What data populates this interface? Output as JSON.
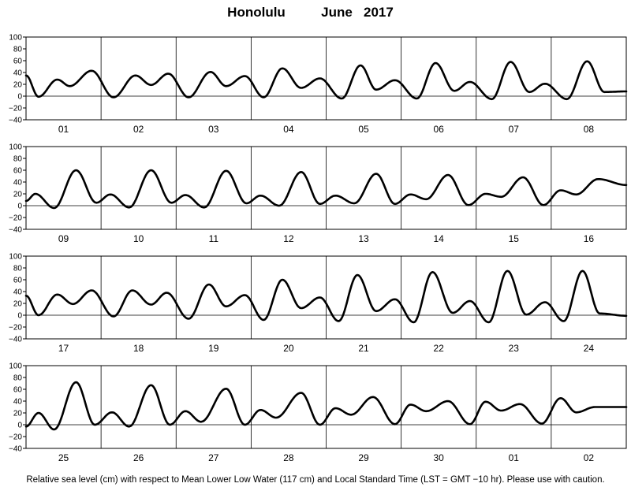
{
  "chart_data": {
    "type": "line",
    "title_location": "Honolulu",
    "title_period": "June   2017",
    "caption": "Relative sea level (cm) with respect to Mean Lower Low Water (117 cm) and Local Standard Time (LST = GMT −10 hr). Please use with caution.",
    "ylim": [
      -40,
      100
    ],
    "y_ticks": [
      100,
      80,
      60,
      40,
      20,
      0,
      -20,
      -40
    ],
    "y_tick_labels": [
      "100",
      "80",
      "60",
      "40",
      "20",
      "0",
      "−20",
      "−40"
    ],
    "hours_per_day": 24,
    "x_unit": "hour",
    "colors": {
      "line": "#000000",
      "grid": "#000000",
      "background": "#ffffff"
    },
    "panels": [
      {
        "days": [
          "01",
          "02",
          "03",
          "04",
          "05",
          "06",
          "07",
          "08"
        ],
        "extrema": [
          [
            0,
            35
          ],
          [
            4,
            -1
          ],
          [
            10,
            28
          ],
          [
            14,
            17
          ],
          [
            21,
            43
          ],
          [
            28,
            -2
          ],
          [
            35,
            35
          ],
          [
            40,
            19
          ],
          [
            45.5,
            38
          ],
          [
            52,
            -2
          ],
          [
            59,
            41
          ],
          [
            64,
            17
          ],
          [
            70,
            34
          ],
          [
            76,
            -2
          ],
          [
            82,
            47
          ],
          [
            88,
            14
          ],
          [
            94,
            30
          ],
          [
            101,
            -4
          ],
          [
            107,
            52
          ],
          [
            112,
            11
          ],
          [
            118,
            27
          ],
          [
            125,
            -4
          ],
          [
            131,
            56
          ],
          [
            137,
            9
          ],
          [
            142,
            24
          ],
          [
            149,
            -5
          ],
          [
            155,
            58
          ],
          [
            161,
            7
          ],
          [
            166,
            21
          ],
          [
            173,
            -5
          ],
          [
            179.5,
            59
          ],
          [
            185,
            7
          ],
          [
            192,
            8
          ]
        ]
      },
      {
        "days": [
          "09",
          "10",
          "11",
          "12",
          "13",
          "14",
          "15",
          "16"
        ],
        "extrema": [
          [
            0,
            8
          ],
          [
            3,
            20
          ],
          [
            9,
            -4
          ],
          [
            16,
            60
          ],
          [
            22.5,
            5
          ],
          [
            27,
            19
          ],
          [
            33,
            -3
          ],
          [
            40,
            60
          ],
          [
            46.5,
            5
          ],
          [
            51,
            18
          ],
          [
            57,
            -3
          ],
          [
            64,
            59
          ],
          [
            70.5,
            4
          ],
          [
            75,
            17
          ],
          [
            81,
            0
          ],
          [
            88,
            57
          ],
          [
            94,
            3
          ],
          [
            99,
            17
          ],
          [
            105,
            4
          ],
          [
            112,
            54
          ],
          [
            118,
            3
          ],
          [
            123,
            19
          ],
          [
            128,
            11
          ],
          [
            135,
            52
          ],
          [
            141.5,
            1
          ],
          [
            147,
            20
          ],
          [
            152,
            15
          ],
          [
            159,
            48
          ],
          [
            165.5,
            1
          ],
          [
            171,
            26
          ],
          [
            176,
            19
          ],
          [
            183,
            45
          ],
          [
            192,
            35
          ]
        ]
      },
      {
        "days": [
          "17",
          "18",
          "19",
          "20",
          "21",
          "22",
          "23",
          "24"
        ],
        "extrema": [
          [
            0,
            33
          ],
          [
            4,
            0
          ],
          [
            10,
            35
          ],
          [
            15,
            19
          ],
          [
            21,
            42
          ],
          [
            28,
            -2
          ],
          [
            34,
            42
          ],
          [
            40,
            18
          ],
          [
            45,
            38
          ],
          [
            52,
            -6
          ],
          [
            58.5,
            52
          ],
          [
            64,
            15
          ],
          [
            70,
            34
          ],
          [
            76,
            -8
          ],
          [
            82,
            60
          ],
          [
            88,
            12
          ],
          [
            94,
            30
          ],
          [
            100,
            -10
          ],
          [
            106,
            68
          ],
          [
            112,
            7
          ],
          [
            118,
            27
          ],
          [
            124,
            -12
          ],
          [
            130,
            73
          ],
          [
            136.5,
            4
          ],
          [
            142,
            24
          ],
          [
            148,
            -12
          ],
          [
            154,
            75
          ],
          [
            160,
            1
          ],
          [
            166,
            22
          ],
          [
            172,
            -10
          ],
          [
            178,
            75
          ],
          [
            183.5,
            3
          ],
          [
            192,
            -1
          ]
        ]
      },
      {
        "days": [
          "25",
          "26",
          "27",
          "28",
          "29",
          "30",
          "01",
          "02"
        ],
        "extrema": [
          [
            0,
            -3
          ],
          [
            4,
            20
          ],
          [
            9,
            -8
          ],
          [
            16,
            72
          ],
          [
            22,
            0
          ],
          [
            27.5,
            21
          ],
          [
            33,
            -3
          ],
          [
            40,
            67
          ],
          [
            46,
            0
          ],
          [
            51,
            23
          ],
          [
            56,
            5
          ],
          [
            64,
            61
          ],
          [
            70,
            0
          ],
          [
            75,
            25
          ],
          [
            80,
            12
          ],
          [
            88,
            54
          ],
          [
            94,
            0
          ],
          [
            99,
            28
          ],
          [
            104,
            17
          ],
          [
            111,
            47
          ],
          [
            118,
            1
          ],
          [
            123,
            34
          ],
          [
            128,
            23
          ],
          [
            135,
            40
          ],
          [
            142,
            1
          ],
          [
            147,
            39
          ],
          [
            152,
            24
          ],
          [
            158,
            35
          ],
          [
            165,
            2
          ],
          [
            171,
            45
          ],
          [
            176,
            21
          ],
          [
            182,
            30
          ],
          [
            192,
            30
          ]
        ]
      }
    ]
  }
}
